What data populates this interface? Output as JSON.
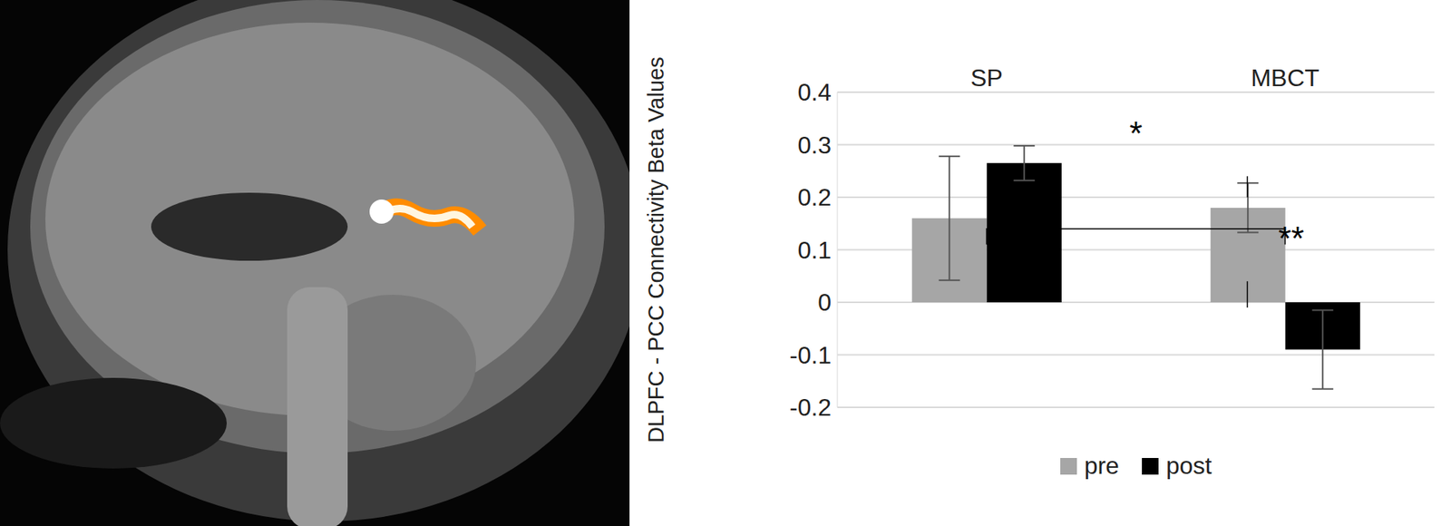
{
  "chart_data": {
    "type": "bar",
    "categories": [
      "SP",
      "MBCT"
    ],
    "series": [
      {
        "name": "pre",
        "color": "#a6a6a6",
        "values": [
          0.16,
          0.18
        ],
        "errors": [
          0.118,
          0.047
        ]
      },
      {
        "name": "post",
        "color": "#000000",
        "values": [
          0.265,
          -0.09
        ],
        "errors": [
          0.033,
          0.075
        ]
      }
    ],
    "y_label": "DLPFC - PCC Connectivity Beta Values",
    "ylim": [
      -0.2,
      0.4
    ],
    "yticks": [
      -0.2,
      -0.1,
      0,
      0.1,
      0.2,
      0.3,
      0.4
    ],
    "grid": true,
    "legend": "bottom",
    "annotations": [
      "*",
      "**"
    ]
  }
}
